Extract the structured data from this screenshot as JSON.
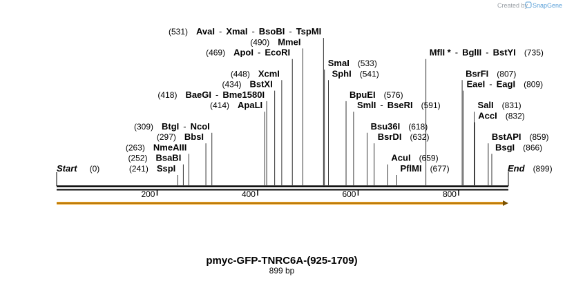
{
  "credit": {
    "prefix": "Created by",
    "brand": "SnapGene"
  },
  "map": {
    "title": "pmyc-GFP-TNRC6A-(925-1709)",
    "length_label": "899 bp",
    "total_bp": 899
  },
  "axis": {
    "ticks": [
      {
        "value": 200,
        "label": "200"
      },
      {
        "value": 400,
        "label": "400"
      },
      {
        "value": 600,
        "label": "600"
      },
      {
        "value": 800,
        "label": "800"
      }
    ]
  },
  "features": [
    {
      "name": "orf",
      "start": 1,
      "end": 899,
      "direction": "forward",
      "color": "#f5a623"
    }
  ],
  "sites": [
    {
      "id": "start",
      "row": 0,
      "side": "left",
      "names": [
        "Start"
      ],
      "pos_label": "(0)",
      "cut": 0,
      "italic": true
    },
    {
      "id": "sspi",
      "row": 0,
      "side": "left",
      "names": [
        "SspI"
      ],
      "pos_label": "(241)",
      "cut": 241
    },
    {
      "id": "bsabi",
      "row": 1,
      "side": "left",
      "names": [
        "BsaBI"
      ],
      "pos_label": "(252)",
      "cut": 252
    },
    {
      "id": "nmeaiii",
      "row": 2,
      "side": "left",
      "names": [
        "NmeAIII"
      ],
      "pos_label": "(263)",
      "cut": 263
    },
    {
      "id": "bbsi",
      "row": 3,
      "side": "left",
      "names": [
        "BbsI"
      ],
      "pos_label": "(297)",
      "cut": 297
    },
    {
      "id": "btgi",
      "row": 4,
      "side": "left",
      "names": [
        "BtgI",
        "NcoI"
      ],
      "pos_label": "(309)",
      "cut": 309
    },
    {
      "id": "apali",
      "row": 6,
      "side": "left",
      "names": [
        "ApaLI"
      ],
      "pos_label": "(414)",
      "cut": 414
    },
    {
      "id": "baegi",
      "row": 7,
      "side": "left",
      "names": [
        "BaeGI",
        "Bme1580I"
      ],
      "pos_label": "(418)",
      "cut": 418
    },
    {
      "id": "bstxi",
      "row": 8,
      "side": "left",
      "names": [
        "BstXI"
      ],
      "pos_label": "(434)",
      "cut": 434
    },
    {
      "id": "xcmi",
      "row": 9,
      "side": "left",
      "names": [
        "XcmI"
      ],
      "pos_label": "(448)",
      "cut": 448
    },
    {
      "id": "apoi",
      "row": 11,
      "side": "left",
      "names": [
        "ApoI",
        "EcoRI"
      ],
      "pos_label": "(469)",
      "cut": 469
    },
    {
      "id": "mmei",
      "row": 12,
      "side": "left",
      "names": [
        "MmeI"
      ],
      "pos_label": "(490)",
      "cut": 490
    },
    {
      "id": "avai",
      "row": 13,
      "side": "left",
      "names": [
        "AvaI",
        "XmaI",
        "BsoBI",
        "TspMI"
      ],
      "pos_label": "(531)",
      "cut": 531
    },
    {
      "id": "smai",
      "row": 10,
      "side": "right",
      "names": [
        "SmaI"
      ],
      "pos_label": "(533)",
      "cut": 533
    },
    {
      "id": "sphi",
      "row": 9,
      "side": "right",
      "names": [
        "SphI"
      ],
      "pos_label": "(541)",
      "cut": 541
    },
    {
      "id": "bpuei",
      "row": 7,
      "side": "right",
      "names": [
        "BpuEI"
      ],
      "pos_label": "(576)",
      "cut": 576
    },
    {
      "id": "smli",
      "row": 6,
      "side": "right",
      "names": [
        "SmlI",
        "BseRI"
      ],
      "pos_label": "(591)",
      "cut": 591
    },
    {
      "id": "bsu36i",
      "row": 4,
      "side": "right",
      "names": [
        "Bsu36I"
      ],
      "pos_label": "(618)",
      "cut": 618
    },
    {
      "id": "bsrdi",
      "row": 3,
      "side": "right",
      "names": [
        "BsrDI"
      ],
      "pos_label": "(632)",
      "cut": 632
    },
    {
      "id": "acui",
      "row": 1,
      "side": "right",
      "names": [
        "AcuI"
      ],
      "pos_label": "(659)",
      "cut": 659
    },
    {
      "id": "pflmi",
      "row": 0,
      "side": "right",
      "names": [
        "PflMI"
      ],
      "pos_label": "(677)",
      "cut": 677
    },
    {
      "id": "mfli",
      "row": 11,
      "side": "right",
      "names": [
        "MflI *",
        "BglII",
        "BstYI"
      ],
      "pos_label": "(735)",
      "cut": 735
    },
    {
      "id": "bsrfi",
      "row": 9,
      "side": "right",
      "names": [
        "BsrFI"
      ],
      "pos_label": "(807)",
      "cut": 807
    },
    {
      "id": "eaei",
      "row": 8,
      "side": "right",
      "names": [
        "EaeI",
        "EagI"
      ],
      "pos_label": "(809)",
      "cut": 809
    },
    {
      "id": "sali",
      "row": 6,
      "side": "right",
      "names": [
        "SalI"
      ],
      "pos_label": "(831)",
      "cut": 831
    },
    {
      "id": "acci",
      "row": 5,
      "side": "right",
      "names": [
        "AccI"
      ],
      "pos_label": "(832)",
      "cut": 832
    },
    {
      "id": "bstapi",
      "row": 3,
      "side": "right",
      "names": [
        "BstAPI"
      ],
      "pos_label": "(859)",
      "cut": 859
    },
    {
      "id": "bsgi",
      "row": 2,
      "side": "right",
      "names": [
        "BsgI"
      ],
      "pos_label": "(866)",
      "cut": 866
    },
    {
      "id": "end",
      "row": 0,
      "side": "right",
      "names": [
        "End"
      ],
      "pos_label": "(899)",
      "cut": 899,
      "italic": true
    }
  ]
}
